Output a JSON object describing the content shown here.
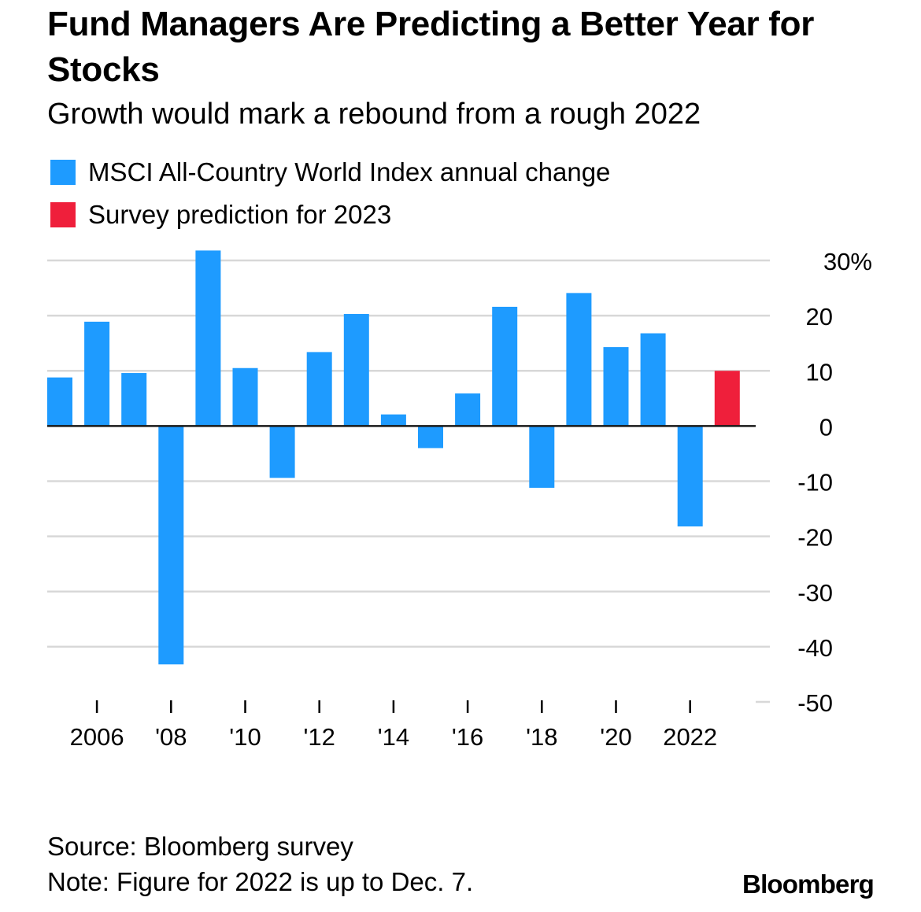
{
  "title": "Fund Managers Are Predicting a Better Year for Stocks",
  "subtitle": "Growth would mark a rebound from a rough 2022",
  "legend": [
    {
      "label": "MSCI All-Country World Index annual change",
      "color": "#1e9bff"
    },
    {
      "label": "Survey prediction for 2023",
      "color": "#ef1f3b"
    }
  ],
  "source": "Source: Bloomberg survey",
  "note": "Note: Figure for 2022 is up to Dec. 7.",
  "logo": "Bloomberg",
  "chart_data": {
    "type": "bar",
    "x": [
      2005,
      2006,
      2007,
      2008,
      2009,
      2010,
      2011,
      2012,
      2013,
      2014,
      2015,
      2016,
      2017,
      2018,
      2019,
      2020,
      2021,
      2022,
      2023
    ],
    "series": [
      {
        "name": "MSCI All-Country World Index annual change",
        "color": "#1e9bff",
        "values": [
          8.8,
          18.9,
          9.6,
          -43.2,
          31.8,
          10.5,
          -9.4,
          13.4,
          20.3,
          2.1,
          -4.0,
          5.9,
          21.6,
          -11.2,
          24.1,
          14.3,
          16.8,
          -18.2,
          null
        ]
      },
      {
        "name": "Survey prediction for 2023",
        "color": "#ef1f3b",
        "values": [
          null,
          null,
          null,
          null,
          null,
          null,
          null,
          null,
          null,
          null,
          null,
          null,
          null,
          null,
          null,
          null,
          null,
          null,
          10.0
        ]
      }
    ],
    "x_tick_labels": [
      {
        "x": 2006,
        "label": "2006"
      },
      {
        "x": 2008,
        "label": "'08"
      },
      {
        "x": 2010,
        "label": "'10"
      },
      {
        "x": 2012,
        "label": "'12"
      },
      {
        "x": 2014,
        "label": "'14"
      },
      {
        "x": 2016,
        "label": "'16"
      },
      {
        "x": 2018,
        "label": "'18"
      },
      {
        "x": 2020,
        "label": "'20"
      },
      {
        "x": 2022,
        "label": "2022"
      }
    ],
    "y_ticks": [
      30,
      20,
      10,
      0,
      -10,
      -20,
      -30,
      -40,
      -50
    ],
    "y_tick_labels": [
      "30%",
      "20",
      "10",
      "0",
      "-10",
      "-20",
      "-30",
      "-40",
      "-50"
    ],
    "ylim": [
      -50,
      30
    ],
    "y_axis_position": "right",
    "grid": true,
    "legend_position": "top-left"
  }
}
